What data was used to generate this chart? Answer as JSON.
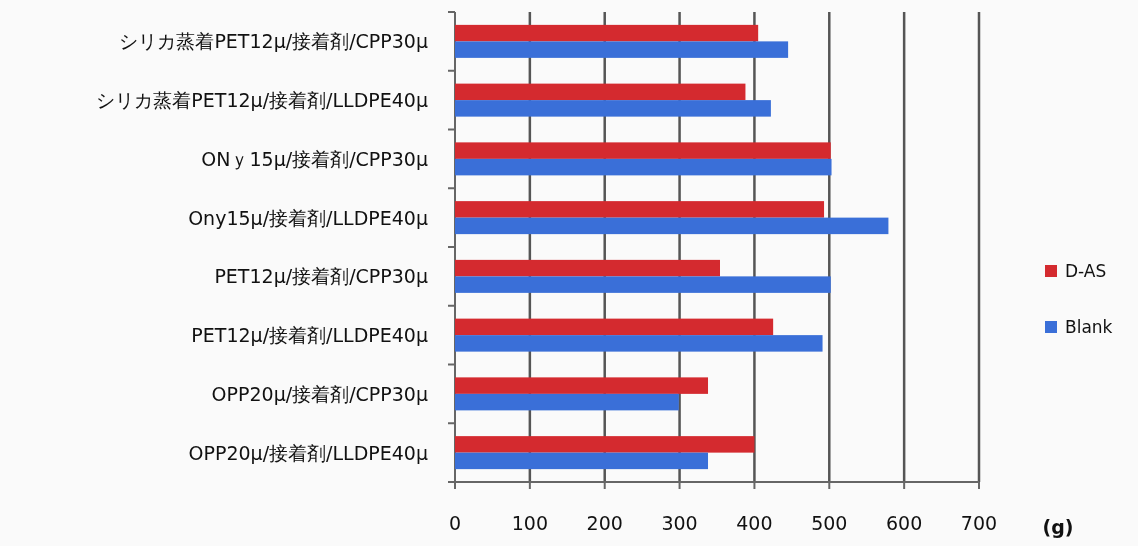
{
  "chart_data": {
    "type": "bar",
    "orientation": "horizontal",
    "xlabel": "(g)",
    "categories": [
      "シリカ蒸着PET12μ/接着剤/CPP30μ",
      "シリカ蒸着PET12μ/接着剤/LLDPE40μ",
      "ONｙ15μ/接着剤/CPP30μ",
      "Ony15μ/接着剤/LLDPE40μ",
      "PET12μ/接着剤/CPP30μ",
      "PET12μ/接着剤/LLDPE40μ",
      "OPP20μ/接着剤/CPP30μ",
      "OPP20μ/接着剤/LLDPE40μ"
    ],
    "series": [
      {
        "name": "D-AS",
        "color": "#d42a2f",
        "values": [
          405,
          388,
          502,
          493,
          354,
          425,
          338,
          400
        ]
      },
      {
        "name": "Blank",
        "color": "#3a6fd8",
        "values": [
          445,
          422,
          503,
          579,
          502,
          491,
          299,
          338
        ]
      }
    ],
    "xlim": [
      0,
      700
    ],
    "xticks": [
      0,
      100,
      200,
      300,
      400,
      500,
      600,
      700
    ],
    "grid": "x",
    "legend": "right"
  }
}
